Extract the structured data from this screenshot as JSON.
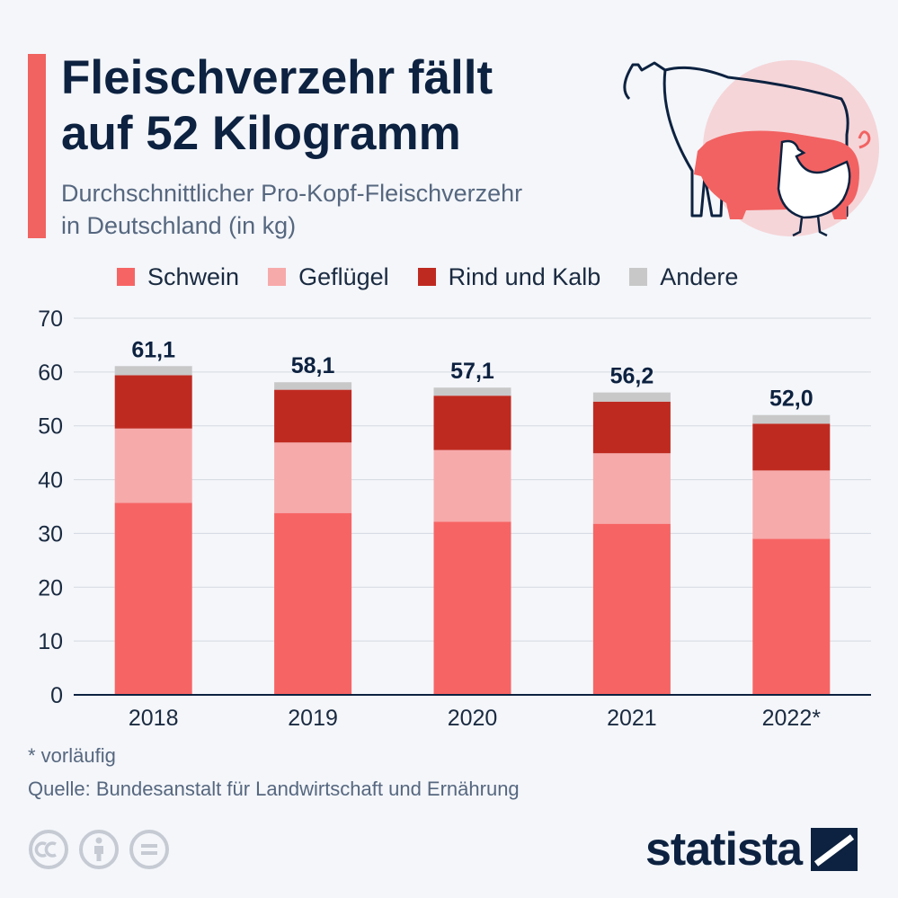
{
  "header": {
    "title_line1": "Fleischverzehr fällt",
    "title_line2": "auf 52 Kilogramm",
    "subtitle_line1": "Durchschnittlicher Pro-Kopf-Fleischverzehr",
    "subtitle_line2": "in Deutschland (in kg)"
  },
  "colors": {
    "Schwein": "#f76464",
    "Geflügel": "#f7aaaa",
    "Rind und Kalb": "#bf2a20",
    "Andere": "#c8c8c8",
    "accent": "#f06360",
    "title": "#0d2240"
  },
  "chart_data": {
    "type": "bar",
    "stacked": true,
    "categories": [
      "2018",
      "2019",
      "2020",
      "2021",
      "2022*"
    ],
    "series": [
      {
        "name": "Schwein",
        "values": [
          35.7,
          33.8,
          32.2,
          31.8,
          29.0
        ]
      },
      {
        "name": "Geflügel",
        "values": [
          13.8,
          13.1,
          13.3,
          13.1,
          12.7
        ]
      },
      {
        "name": "Rind und Kalb",
        "values": [
          9.9,
          9.8,
          10.1,
          9.6,
          8.7
        ]
      },
      {
        "name": "Andere",
        "values": [
          1.7,
          1.4,
          1.5,
          1.7,
          1.6
        ]
      }
    ],
    "totals": [
      "61,1",
      "58,1",
      "57,1",
      "56,2",
      "52,0"
    ],
    "ylim": [
      0,
      70
    ],
    "yticks": [
      0,
      10,
      20,
      30,
      40,
      50,
      60,
      70
    ],
    "grid": true,
    "legend": "top"
  },
  "footer": {
    "footnote": "* vorläufig",
    "source": "Quelle: Bundesanstalt für Landwirtschaft und Ernährung",
    "brand": "statista"
  }
}
